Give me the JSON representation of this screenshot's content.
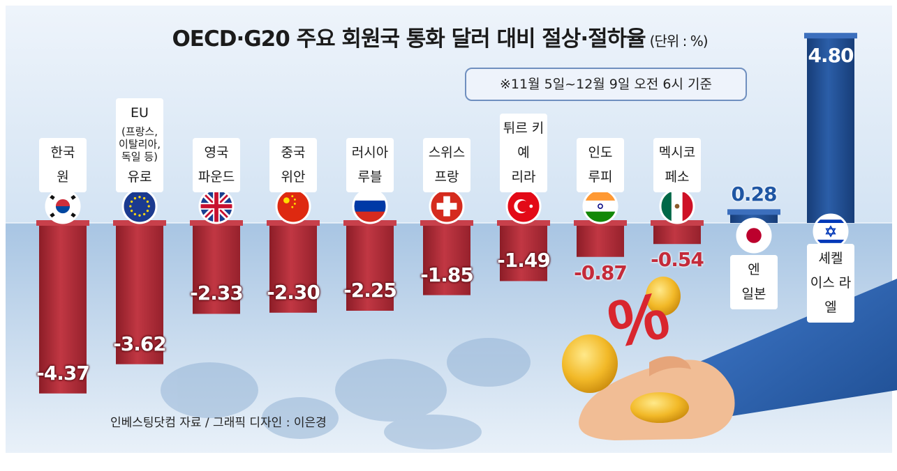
{
  "title": "OECD·G20 주요 회원국 통화 달러 대비 절상·절하율",
  "unit": "(단위 : %)",
  "note": "※11월 5일~12월 9일 오전 6시 기준",
  "source": "인베스팅닷컴 자료 / 그래픽 디자인 : 이은경",
  "colors": {
    "negative_bar": "#b02b35",
    "positive_bar": "#1f4f94",
    "positive_text": "#1f56a3",
    "negative_text": "#c42b3a",
    "background_top": "#dde9f6",
    "background_bottom": "#b7d0e8"
  },
  "currencies": [
    {
      "line1": "한국",
      "line2": "원",
      "flag": "korea-flag-icon"
    },
    {
      "line1": "EU",
      "sub": "(프랑스, 이탈리아, 독일 등)",
      "line2": "유로",
      "flag": "eu-flag-icon"
    },
    {
      "line1": "영국",
      "line2": "파운드",
      "flag": "uk-flag-icon"
    },
    {
      "line1": "중국",
      "line2": "위안",
      "flag": "china-flag-icon"
    },
    {
      "line1": "러시아",
      "line2": "루블",
      "flag": "russia-flag-icon"
    },
    {
      "line1": "스위스",
      "line2": "프랑",
      "flag": "switzerland-flag-icon"
    },
    {
      "line1": "튀르 키예",
      "line2": "리라",
      "flag": "turkey-flag-icon"
    },
    {
      "line1": "인도",
      "line2": "루피",
      "flag": "india-flag-icon"
    },
    {
      "line1": "멕시코",
      "line2": "페소",
      "flag": "mexico-flag-icon"
    },
    {
      "line1": "엔",
      "line2": "일본",
      "flag": "japan-flag-icon"
    },
    {
      "line1": "셰켈",
      "line2": "이스 라엘",
      "flag": "israel-flag-icon"
    }
  ],
  "chart_data": {
    "type": "bar",
    "categories": [
      "한국 원",
      "EU 유로",
      "영국 파운드",
      "중국 위안",
      "러시아 루블",
      "스위스 프랑",
      "튀르키예 리라",
      "인도 루피",
      "멕시코 페소",
      "일본 엔",
      "이스라엘 셰켈"
    ],
    "values": [
      -4.37,
      -3.62,
      -2.33,
      -2.3,
      -2.25,
      -1.85,
      -1.49,
      -0.87,
      -0.54,
      0.28,
      4.8
    ],
    "value_labels": [
      "-4.37",
      "-3.62",
      "-2.33",
      "-2.30",
      "-2.25",
      "-1.85",
      "-1.49",
      "-0.87",
      "-0.54",
      "0.28",
      "4.80"
    ],
    "ylim": [
      -4.8,
      5.0
    ],
    "grid": false,
    "legend": "none"
  }
}
